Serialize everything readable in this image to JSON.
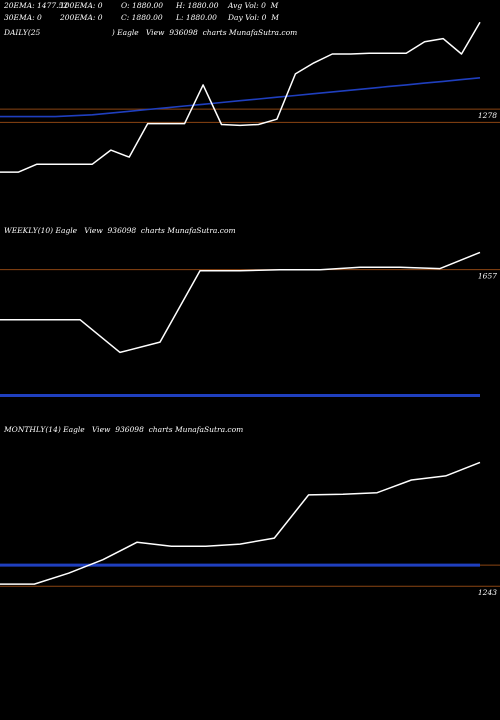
{
  "header": {
    "row1": [
      "20EMA: 1477.52",
      "100EMA: 0",
      "O: 1880.00",
      "H: 1880.00",
      "Avg Vol: 0  M"
    ],
    "row2": [
      "30EMA: 0",
      "200EMA: 0",
      "C: 1880.00",
      "L: 1880.00",
      "Day Vol: 0  M"
    ]
  },
  "colors": {
    "background": "#000000",
    "price_line": "#ffffff",
    "ema_line": "#1f3fbf",
    "level_line": "#8b4513",
    "text": "#ffffff"
  },
  "chart_data": [
    {
      "type": "line",
      "title": "DAILY(25                              ) Eagle   View  936098  charts MunafaSutra.com",
      "series": [
        {
          "values": [
            52,
            52,
            70,
            70,
            70,
            70,
            102,
            86,
            162,
            162,
            162,
            250,
            160,
            158,
            160,
            172,
            275,
            300,
            320,
            320,
            322,
            322,
            322,
            348,
            355,
            320,
            392
          ]
        },
        {
          "values": [
            178,
            178,
            178,
            178,
            180,
            182,
            186,
            190,
            194,
            198,
            202,
            206,
            210,
            214,
            218,
            222,
            226,
            230,
            234,
            238,
            242,
            246,
            250,
            254,
            258,
            262,
            266
          ]
        }
      ],
      "levels": [
        {
          "value": 195,
          "label": "1278"
        },
        {
          "value": 165,
          "label": ""
        }
      ],
      "ylim": [
        0,
        420
      ]
    },
    {
      "type": "line",
      "title": "WEEKLY(10) Eagle   View  936098  charts MunafaSutra.com",
      "series": [
        {
          "values": [
            220,
            220,
            220,
            125,
            155,
            362,
            362,
            365,
            365,
            372,
            372,
            368,
            415
          ]
        },
        {
          "values": [
            0,
            0,
            0,
            0,
            0,
            0,
            0,
            0,
            0,
            0,
            0,
            0,
            0
          ]
        }
      ],
      "levels": [
        {
          "value": 365,
          "label": "1657"
        }
      ],
      "ylim": [
        -100,
        480
      ]
    },
    {
      "type": "line",
      "title": "MONTHLY(14) Eagle   View  936098  charts MunafaSutra.com",
      "series": [
        {
          "values": [
            -70,
            -70,
            -30,
            20,
            85,
            70,
            70,
            78,
            100,
            260,
            262,
            268,
            315,
            330,
            380
          ]
        },
        {
          "values": [
            0,
            0,
            0,
            0,
            0,
            0,
            0,
            0,
            0,
            0,
            0,
            0,
            0,
            0,
            0
          ]
        }
      ],
      "levels": [
        {
          "value": 0,
          "label": ""
        },
        {
          "value": -78,
          "label": "1243"
        }
      ],
      "ylim": [
        -240,
        500
      ]
    }
  ]
}
